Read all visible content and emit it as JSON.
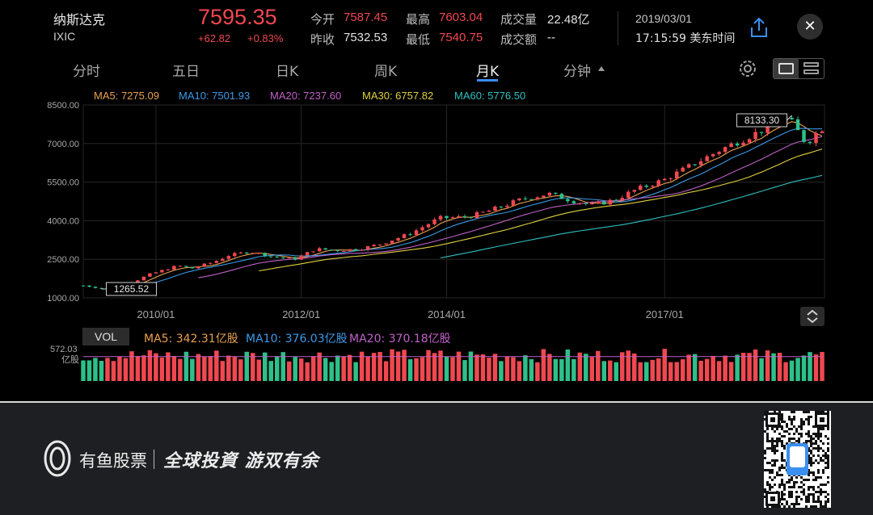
{
  "header": {
    "name": "纳斯达克",
    "code": "IXIC",
    "price": "7595.35",
    "change": "+62.82",
    "change_pct": "+0.83%",
    "quotes": {
      "open_label": "今开",
      "open": "7587.45",
      "prev_label": "昨收",
      "prev": "7532.53",
      "high_label": "最高",
      "high": "7603.04",
      "low_label": "最低",
      "low": "7540.75",
      "vol_label": "成交量",
      "vol": "22.48亿",
      "amt_label": "成交额",
      "amt": "--"
    },
    "date": "2019/03/01",
    "time": "17:15:59 美东时间",
    "share_icon": "share-icon",
    "close_label": "✕"
  },
  "tabs": [
    "分时",
    "五日",
    "日K",
    "周K",
    "月K",
    "分钟"
  ],
  "active_tab": "月K",
  "colors": {
    "up": "#f04850",
    "down": "#2ec08a",
    "ma5": "#e8a050",
    "ma10": "#3a9ae8",
    "ma20": "#c060c8",
    "ma30": "#e0d040",
    "ma60": "#30c0c0"
  },
  "ma_legend": {
    "ma5": "MA5: 7275.09",
    "ma10": "MA10: 7501.93",
    "ma20": "MA20: 7237.60",
    "ma30": "MA30: 6757.82",
    "ma60": "MA60: 5776.50"
  },
  "volume_legend": {
    "button": "VOL",
    "ma5": "MA5: 342.31亿股",
    "ma10": "MA10: 376.03亿股",
    "ma20": "MA20: 370.18亿股",
    "max_label": "572.03",
    "unit": "亿股"
  },
  "chart_data": {
    "type": "candlestick",
    "y_ticks": [
      "8500.00",
      "7000.00",
      "5500.00",
      "4000.00",
      "2500.00",
      "1000.00"
    ],
    "ylim": [
      1000,
      8500
    ],
    "x_ticks": [
      {
        "label": "2010/01",
        "t": 2010.0
      },
      {
        "label": "2012/01",
        "t": 2012.0
      },
      {
        "label": "2014/01",
        "t": 2014.0
      },
      {
        "label": "2017/01",
        "t": 2017.0
      }
    ],
    "x_range": [
      2009.0,
      2019.2
    ],
    "annotations": [
      {
        "label": "8133.30",
        "kind": "max"
      },
      {
        "label": "1265.52",
        "kind": "min"
      }
    ],
    "close_path": [
      [
        2009.0,
        1480
      ],
      [
        2009.3,
        1350
      ],
      [
        2009.6,
        1500
      ],
      [
        2009.9,
        1900
      ],
      [
        2010.3,
        2250
      ],
      [
        2010.5,
        2150
      ],
      [
        2010.8,
        2400
      ],
      [
        2011.0,
        2650
      ],
      [
        2011.3,
        2800
      ],
      [
        2011.6,
        2600
      ],
      [
        2011.9,
        2500
      ],
      [
        2012.2,
        2900
      ],
      [
        2012.5,
        2850
      ],
      [
        2012.8,
        2900
      ],
      [
        2013.1,
        3100
      ],
      [
        2013.5,
        3500
      ],
      [
        2013.9,
        4100
      ],
      [
        2014.3,
        4150
      ],
      [
        2014.6,
        4400
      ],
      [
        2015.0,
        4800
      ],
      [
        2015.4,
        5050
      ],
      [
        2015.7,
        4800
      ],
      [
        2016.0,
        4600
      ],
      [
        2016.3,
        4800
      ],
      [
        2016.6,
        5200
      ],
      [
        2017.0,
        5600
      ],
      [
        2017.4,
        6200
      ],
      [
        2017.8,
        6800
      ],
      [
        2018.1,
        7200
      ],
      [
        2018.4,
        7600
      ],
      [
        2018.7,
        8000
      ],
      [
        2018.95,
        7000
      ],
      [
        2019.15,
        7595
      ]
    ],
    "volume_range": [
      0,
      572.03
    ]
  },
  "footer": {
    "brand": "有鱼股票",
    "slogan": "全球投資 游双有余"
  }
}
